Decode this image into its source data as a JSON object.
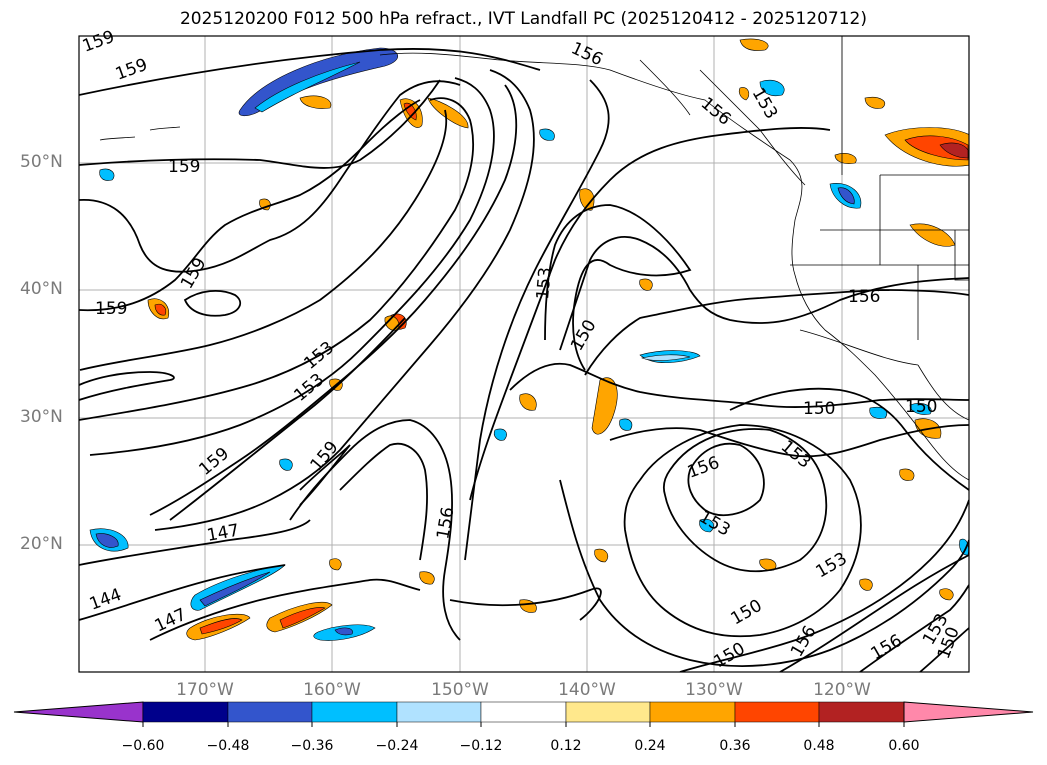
{
  "title": "2025120200 F012 500 hPa refract., IVT Landfall PC (2025120412 - 2025120712)",
  "lat_labels": [
    "50°N",
    "40°N",
    "30°N",
    "20°N"
  ],
  "lon_labels": [
    "170°W",
    "160°W",
    "150°W",
    "140°W",
    "130°W",
    "120°W"
  ],
  "contour_labels": [
    "159",
    "159",
    "159",
    "159",
    "159",
    "159",
    "159",
    "156",
    "156",
    "156",
    "156",
    "156",
    "156",
    "156",
    "153",
    "153",
    "153",
    "153",
    "153",
    "153",
    "153",
    "153",
    "150",
    "150",
    "150",
    "150",
    "150",
    "150",
    "147",
    "147",
    "144"
  ],
  "colorbar": {
    "ticks": [
      "−0.60",
      "−0.48",
      "−0.36",
      "−0.24",
      "−0.12",
      "0.12",
      "0.24",
      "0.36",
      "0.48",
      "0.60"
    ],
    "colors": [
      "#9933cc",
      "#00008b",
      "#3355cc",
      "#00bfff",
      "#b0e2ff",
      "#ffffff",
      "#ffe88c",
      "#ffa500",
      "#ff4500",
      "#b22222",
      "#ff88aa"
    ]
  }
}
